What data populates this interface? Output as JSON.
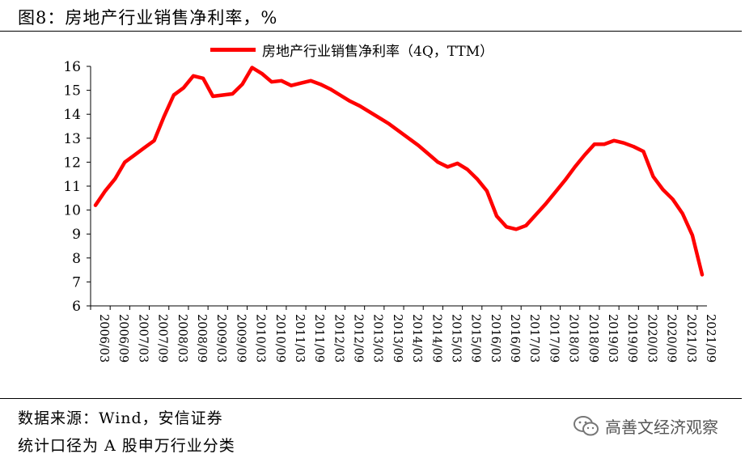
{
  "figure": {
    "title": "图8：房地产行业销售净利率，%",
    "source_line": "数据来源：Wind，安信证券",
    "scope_line": "统计口径为 A 股申万行业分类",
    "watermark": "高善文经济观察",
    "watermark_icon": "wechat-icon"
  },
  "chart_data": {
    "type": "line",
    "title": "图8：房地产行业销售净利率，%",
    "xlabel": "",
    "ylabel": "",
    "ylim": [
      6,
      16
    ],
    "yticks": [
      6,
      7,
      8,
      9,
      10,
      11,
      12,
      13,
      14,
      15,
      16
    ],
    "grid": false,
    "legend_position": "top-center",
    "x_tick_labels": [
      "2006/03",
      "2006/09",
      "2007/03",
      "2007/09",
      "2008/03",
      "2008/09",
      "2009/03",
      "2009/09",
      "2010/03",
      "2010/09",
      "2011/03",
      "2011/09",
      "2012/03",
      "2012/09",
      "2013/03",
      "2013/09",
      "2014/03",
      "2014/09",
      "2015/03",
      "2015/09",
      "2016/03",
      "2016/09",
      "2017/03",
      "2017/09",
      "2018/03",
      "2018/09",
      "2019/03",
      "2019/09",
      "2020/03",
      "2020/09",
      "2021/03",
      "2021/09"
    ],
    "x": [
      "2006/03",
      "2006/06",
      "2006/09",
      "2006/12",
      "2007/03",
      "2007/06",
      "2007/09",
      "2007/12",
      "2008/03",
      "2008/06",
      "2008/09",
      "2008/12",
      "2009/03",
      "2009/06",
      "2009/09",
      "2009/12",
      "2010/03",
      "2010/06",
      "2010/09",
      "2010/12",
      "2011/03",
      "2011/06",
      "2011/09",
      "2011/12",
      "2012/03",
      "2012/06",
      "2012/09",
      "2012/12",
      "2013/03",
      "2013/06",
      "2013/09",
      "2013/12",
      "2014/03",
      "2014/06",
      "2014/09",
      "2014/12",
      "2015/03",
      "2015/06",
      "2015/09",
      "2015/12",
      "2016/03",
      "2016/06",
      "2016/09",
      "2016/12",
      "2017/03",
      "2017/06",
      "2017/09",
      "2017/12",
      "2018/03",
      "2018/06",
      "2018/09",
      "2018/12",
      "2019/03",
      "2019/06",
      "2019/09",
      "2019/12",
      "2020/03",
      "2020/06",
      "2020/09",
      "2020/12",
      "2021/03",
      "2021/06",
      "2021/09"
    ],
    "series": [
      {
        "name": "房地产行业销售净利率（4Q，TTM）",
        "color": "#ff0000",
        "values": [
          10.2,
          10.8,
          11.3,
          12.0,
          12.3,
          12.6,
          12.9,
          13.9,
          14.8,
          15.1,
          15.6,
          15.5,
          14.75,
          14.8,
          14.85,
          15.25,
          15.95,
          15.7,
          15.35,
          15.4,
          15.2,
          15.3,
          15.4,
          15.25,
          15.05,
          14.8,
          14.55,
          14.35,
          14.1,
          13.85,
          13.6,
          13.3,
          13.0,
          12.7,
          12.35,
          12.0,
          11.8,
          11.95,
          11.7,
          11.3,
          10.8,
          9.75,
          9.3,
          9.2,
          9.35,
          9.8,
          10.25,
          10.75,
          11.25,
          11.8,
          12.3,
          12.75,
          12.75,
          12.9,
          12.8,
          12.65,
          12.45,
          11.4,
          10.85,
          10.45,
          9.85,
          8.95,
          7.3
        ]
      }
    ]
  }
}
